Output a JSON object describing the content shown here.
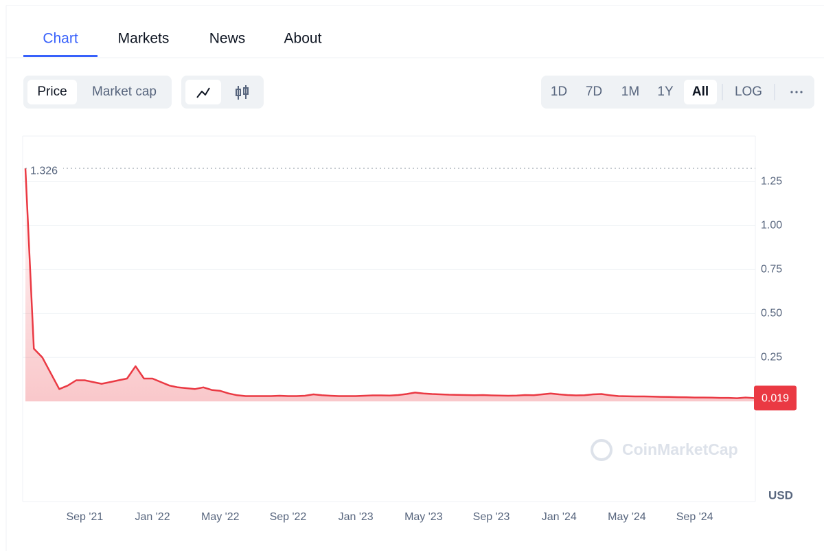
{
  "tabs": [
    "Chart",
    "Markets",
    "News",
    "About"
  ],
  "price_toggle": [
    "Price",
    "Market cap"
  ],
  "ranges": [
    "1D",
    "7D",
    "1M",
    "1Y",
    "All",
    "LOG"
  ],
  "chart_data": {
    "type": "line",
    "color": "#ea3943",
    "y_unit": "USD",
    "watermark": "CoinMarketCap",
    "ylim": [
      -0.57,
      1.51
    ],
    "yticks": [
      {
        "value": 1.25,
        "label": "1.25"
      },
      {
        "value": 1,
        "label": "1.00"
      },
      {
        "value": 0.75,
        "label": "0.75"
      },
      {
        "value": 0.5,
        "label": "0.50"
      },
      {
        "value": 0.25,
        "label": "0.25"
      }
    ],
    "categories": [
      null,
      null,
      null,
      null,
      null,
      null,
      null,
      "Sep '21",
      null,
      null,
      null,
      null,
      null,
      null,
      null,
      "Jan '22",
      null,
      null,
      null,
      null,
      null,
      null,
      null,
      "May '22",
      null,
      null,
      null,
      null,
      null,
      null,
      null,
      "Sep '22",
      null,
      null,
      null,
      null,
      null,
      null,
      null,
      "Jan '23",
      null,
      null,
      null,
      null,
      null,
      null,
      null,
      "May '23",
      null,
      null,
      null,
      null,
      null,
      null,
      null,
      "Sep '23",
      null,
      null,
      null,
      null,
      null,
      null,
      null,
      "Jan '24",
      null,
      null,
      null,
      null,
      null,
      null,
      null,
      "May '24",
      null,
      null,
      null,
      null,
      null,
      null,
      null,
      "Sep '24",
      null,
      null,
      null,
      null,
      null,
      null,
      null
    ],
    "values": [
      1.326,
      0.3,
      0.25,
      0.16,
      0.07,
      0.09,
      0.12,
      0.12,
      0.11,
      0.1,
      0.11,
      0.12,
      0.13,
      0.2,
      0.13,
      0.13,
      0.11,
      0.09,
      0.08,
      0.075,
      0.07,
      0.08,
      0.065,
      0.06,
      0.045,
      0.035,
      0.03,
      0.03,
      0.03,
      0.03,
      0.032,
      0.03,
      0.03,
      0.032,
      0.04,
      0.035,
      0.032,
      0.03,
      0.03,
      0.03,
      0.032,
      0.034,
      0.034,
      0.033,
      0.036,
      0.042,
      0.05,
      0.045,
      0.042,
      0.04,
      0.038,
      0.037,
      0.036,
      0.035,
      0.036,
      0.034,
      0.033,
      0.032,
      0.033,
      0.036,
      0.035,
      0.04,
      0.045,
      0.04,
      0.036,
      0.034,
      0.035,
      0.04,
      0.042,
      0.035,
      0.03,
      0.029,
      0.028,
      0.028,
      0.027,
      0.026,
      0.025,
      0.024,
      0.023,
      0.022,
      0.022,
      0.021,
      0.02,
      0.02,
      0.018,
      0.022,
      0.019
    ]
  }
}
